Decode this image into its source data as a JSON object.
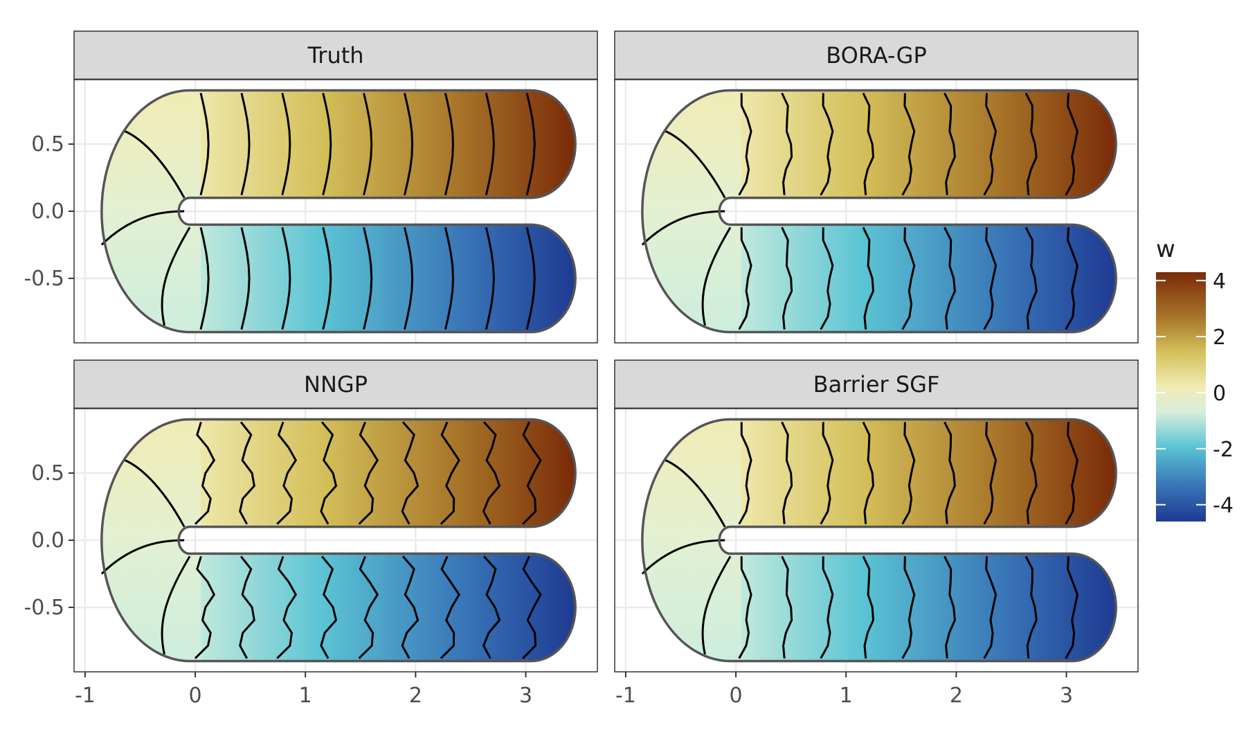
{
  "chart_data": {
    "type": "heatmap",
    "panels": [
      "Truth",
      "BORA-GP",
      "NNGP",
      "Barrier SGF"
    ],
    "x_ticks": [
      -1,
      0,
      1,
      2,
      3
    ],
    "y_ticks": [
      0.5,
      0.0,
      -0.5
    ],
    "x_tick_labels": [
      "-1",
      "0",
      "1",
      "2",
      "3"
    ],
    "y_tick_labels": [
      "0.5",
      "0.0",
      "-0.5"
    ],
    "xlim": [
      -1.1,
      3.65
    ],
    "ylim": [
      -0.98,
      0.98
    ],
    "legend": {
      "title": "w",
      "breaks": [
        4,
        2,
        0,
        -2,
        -4
      ],
      "labels": [
        "4",
        "2",
        "0",
        "-2",
        "-4"
      ],
      "range": [
        -4.6,
        4.3
      ],
      "position": "right"
    },
    "colormap": [
      "#1f3a93",
      "#3a78b8",
      "#5cc4d4",
      "#d8eedd",
      "#f1ecb4",
      "#d4c05a",
      "#a77529",
      "#7a2a08"
    ],
    "domain": "U-shaped region: upper arm y in [0.1, 0.9], lower arm y in [-0.9, -0.1], connected by a semicircular bend at the left; field increases along the upper arm and decreases along the lower arm"
  }
}
